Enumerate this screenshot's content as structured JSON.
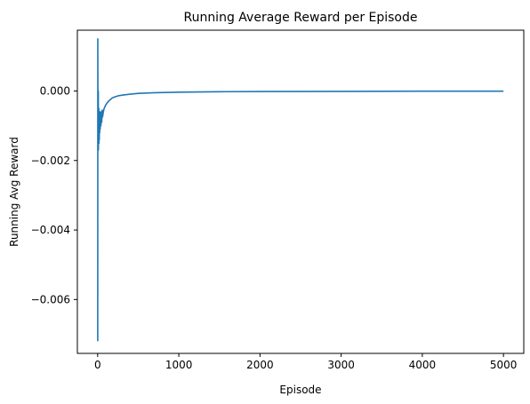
{
  "chart_data": {
    "type": "line",
    "title": "Running Average Reward per Episode",
    "xlabel": "Episode",
    "ylabel": "Running Avg Reward",
    "xlim": [
      -250,
      5250
    ],
    "ylim": [
      -0.00755,
      0.00175
    ],
    "xticks": [
      0,
      1000,
      2000,
      3000,
      4000,
      5000
    ],
    "xtick_labels": [
      "0",
      "1000",
      "2000",
      "3000",
      "4000",
      "5000"
    ],
    "yticks": [
      0.0,
      -0.002,
      -0.004,
      -0.006
    ],
    "ytick_labels": [
      "0.000",
      "−0.002",
      "−0.004",
      "−0.006"
    ],
    "grid": false,
    "legend": "none",
    "series": [
      {
        "color": "#1f77b4",
        "x": [
          1,
          2,
          3,
          4,
          5,
          6,
          7,
          8,
          9,
          10,
          12,
          14,
          16,
          18,
          20,
          22,
          25,
          28,
          31,
          35,
          40,
          45,
          50,
          55,
          60,
          70,
          80,
          90,
          100,
          120,
          140,
          160,
          180,
          200,
          250,
          300,
          400,
          500,
          700,
          1000,
          1500,
          2000,
          3000,
          4000,
          5000
        ],
        "y": [
          -0.0072,
          0.0015,
          -0.0007,
          -0.0002,
          -0.0016,
          -0.0004,
          -0.0012,
          0.0,
          -0.0017,
          -0.0006,
          -0.0013,
          -0.0005,
          -0.0015,
          -0.0008,
          -0.0014,
          -0.0007,
          -0.0012,
          -0.0006,
          -0.0011,
          -0.0007,
          -0.001,
          -0.0006,
          -0.0009,
          -0.00055,
          -0.00075,
          -0.0006,
          -0.0005,
          -0.00045,
          -0.0004,
          -0.00033,
          -0.00028,
          -0.00024,
          -0.0002,
          -0.00018,
          -0.00014,
          -0.00012,
          -9e-05,
          -7e-05,
          -5e-05,
          -3.5e-05,
          -2e-05,
          -1.5e-05,
          -1e-05,
          -6e-06,
          -4e-06
        ]
      }
    ]
  }
}
